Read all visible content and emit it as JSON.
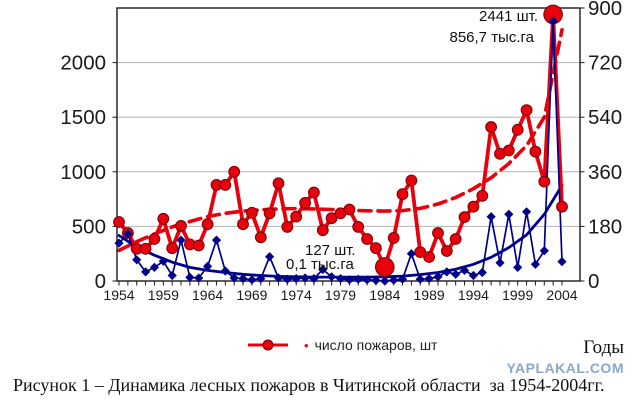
{
  "watermark": "YAPLAKAL.COM",
  "caption": "Рисунок 1 – Динамика лесных пожаров в Читинской области  за 1954-2004гг.",
  "x_axis_title": "Годы",
  "legend": {
    "bullet": "•",
    "series_label": "число пожаров, шт"
  },
  "annotations": {
    "peak_fires": "2441 шт.",
    "peak_area": "856,7 тыс.га",
    "min_fires": "127 шт.",
    "min_area": "0,1 тыс.га"
  },
  "chart_data": {
    "type": "line",
    "title": "",
    "xlabel": "Годы",
    "grid": true,
    "year_start": 1954,
    "year_end": 2004,
    "x_axis": {
      "tick_labels": [
        "1954",
        "1959",
        "1964",
        "1969",
        "1974",
        "1979",
        "1984",
        "1989",
        "1994",
        "1999",
        "2004"
      ]
    },
    "left_axis": {
      "labels": [
        "0",
        "500",
        "1000",
        "1500",
        "2000"
      ],
      "values": [
        0,
        500,
        1000,
        1500,
        2000
      ],
      "max": 2500
    },
    "right_axis": {
      "labels": [
        "0",
        "180",
        "360",
        "540",
        "720",
        "900"
      ],
      "values": [
        0,
        180,
        360,
        540,
        720,
        900
      ],
      "max": 900
    },
    "colors": {
      "fires": "#e8000d",
      "fires_dark": "#7a0000",
      "area": "#00008b",
      "grid": "#b3b3b3",
      "frame": "#1a1a1a"
    },
    "series": [
      {
        "id": "fires_count",
        "legend_label": "число пожаров, шт",
        "axis": "left",
        "marker": "circle",
        "values": [
          540,
          440,
          295,
          295,
          385,
          570,
          300,
          505,
          335,
          325,
          520,
          880,
          880,
          1000,
          520,
          625,
          400,
          620,
          895,
          495,
          590,
          715,
          810,
          465,
          575,
          620,
          655,
          495,
          385,
          300,
          127,
          395,
          795,
          920,
          265,
          220,
          440,
          275,
          385,
          585,
          680,
          780,
          1410,
          1165,
          1195,
          1385,
          1565,
          1185,
          910,
          2441,
          680
        ]
      },
      {
        "id": "burned_area_thousand_ha",
        "legend_label": "",
        "axis": "right",
        "marker": "diamond",
        "values": [
          125,
          155,
          70,
          30,
          45,
          65,
          18,
          135,
          12,
          10,
          48,
          135,
          33,
          10,
          8,
          4,
          8,
          80,
          10,
          6,
          8,
          10,
          8,
          38,
          14,
          8,
          4,
          6,
          4,
          2,
          0.1,
          3,
          6,
          90,
          6,
          8,
          14,
          30,
          22,
          35,
          18,
          28,
          212,
          60,
          220,
          45,
          228,
          55,
          100,
          856.7,
          64
        ]
      }
    ],
    "trend_lines": [
      {
        "id": "fires_trend",
        "style": "dashed",
        "axis": "left",
        "years": [
          1954,
          1956,
          1958,
          1960,
          1962,
          1964,
          1966,
          1968,
          1970,
          1972,
          1974,
          1976,
          1978,
          1980,
          1982,
          1984,
          1986,
          1988,
          1990,
          1992,
          1994,
          1996,
          1998,
          2000,
          2002,
          2004
        ],
        "values": [
          280,
          360,
          430,
          495,
          545,
          590,
          620,
          640,
          652,
          660,
          663,
          660,
          655,
          648,
          643,
          640,
          645,
          665,
          705,
          765,
          845,
          945,
          1075,
          1240,
          1500,
          2300
        ]
      },
      {
        "id": "area_trend",
        "style": "solid",
        "axis": "right",
        "years": [
          1954,
          1956,
          1958,
          1960,
          1962,
          1964,
          1966,
          1968,
          1970,
          1972,
          1974,
          1976,
          1978,
          1980,
          1982,
          1984,
          1986,
          1988,
          1990,
          1992,
          1994,
          1996,
          1998,
          2000,
          2002,
          2004
        ],
        "values": [
          150,
          112,
          85,
          62,
          45,
          35,
          28,
          22,
          18,
          15,
          14,
          13,
          13,
          13,
          13,
          14,
          16,
          21,
          28,
          39,
          55,
          78,
          110,
          152,
          220,
          315
        ]
      }
    ],
    "highlight_years": [
      1984,
      2003
    ],
    "annotated_points": [
      {
        "year": 2003,
        "fires": 2441,
        "area_thousand_ha": 856.7
      },
      {
        "year": 1984,
        "fires": 127,
        "area_thousand_ha": 0.1
      }
    ]
  }
}
